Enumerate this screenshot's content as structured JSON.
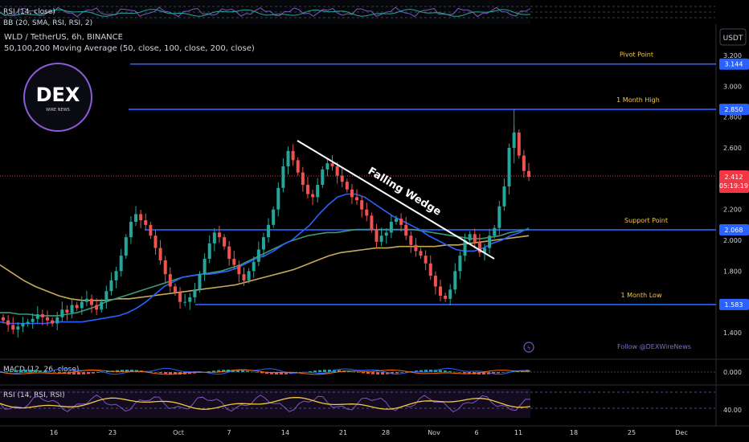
{
  "header": {
    "symbol_line": "WLD / TetherUS, 6h, BINANCE",
    "ma_line": "50,100,200 Moving Average (50, close, 100, close, 200, close)",
    "rsi_top_label": "RSI (14, close)",
    "bb_top_label": "BB (20, SMA, RSI, RSI, 2)",
    "currency_badge": "USDT"
  },
  "logo": {
    "text": "DEX",
    "subtext": "WIRE NEWS"
  },
  "watermark": {
    "follow_text": "Follow @DEXWireNews"
  },
  "price_tag": {
    "value": "2.412",
    "countdown": "05:19:19",
    "color": "#f23645"
  },
  "colors": {
    "up": "#26a69a",
    "down": "#ef5350",
    "level": "#2962ff",
    "label": "#f5c842",
    "ma50": "#2962ff",
    "ma100": "#3d9970",
    "ma200": "#c8a95a",
    "wedge": "#ffffff"
  },
  "chart_data": {
    "type": "candlestick",
    "x_ticks": [
      "16",
      "23",
      "Oct",
      "7",
      "14",
      "21",
      "28",
      "Nov",
      "6",
      "11",
      "18",
      "25",
      "Dec"
    ],
    "y_ticks": [
      "3.200",
      "3.000",
      "2.800",
      "2.600",
      "2.200",
      "2.000",
      "1.800",
      "1.400"
    ],
    "ylim": [
      1.3,
      3.25
    ],
    "levels": [
      {
        "name": "Pivot Point",
        "value": 3.144,
        "label": "3.144"
      },
      {
        "name": "1 Month High",
        "value": 2.85,
        "label": "2.850"
      },
      {
        "name": "Support Point",
        "value": 2.068,
        "label": "2.068"
      },
      {
        "name": "1 Month Low",
        "value": 1.583,
        "label": "1.583"
      }
    ],
    "annotation": "Falling Wedge",
    "close_series": [
      1.48,
      1.45,
      1.42,
      1.44,
      1.46,
      1.47,
      1.49,
      1.52,
      1.5,
      1.48,
      1.46,
      1.5,
      1.55,
      1.53,
      1.58,
      1.56,
      1.6,
      1.62,
      1.58,
      1.55,
      1.6,
      1.67,
      1.74,
      1.8,
      1.9,
      2.02,
      2.12,
      2.17,
      2.13,
      2.1,
      2.03,
      1.95,
      1.87,
      1.78,
      1.7,
      1.66,
      1.6,
      1.6,
      1.63,
      1.68,
      1.78,
      1.88,
      1.98,
      2.05,
      2.02,
      1.96,
      1.88,
      1.84,
      1.78,
      1.74,
      1.8,
      1.86,
      1.94,
      2.02,
      2.1,
      2.2,
      2.34,
      2.48,
      2.58,
      2.52,
      2.44,
      2.36,
      2.3,
      2.28,
      2.36,
      2.46,
      2.5,
      2.48,
      2.42,
      2.38,
      2.33,
      2.28,
      2.26,
      2.2,
      2.16,
      2.07,
      1.99,
      2.03,
      2.05,
      2.12,
      2.14,
      2.1,
      2.03,
      1.97,
      1.93,
      1.9,
      1.85,
      1.77,
      1.7,
      1.64,
      1.62,
      1.68,
      1.8,
      1.9,
      2.0,
      2.04,
      1.99,
      1.92,
      1.95,
      2.03,
      2.08,
      2.22,
      2.35,
      2.6,
      2.7,
      2.55,
      2.45,
      2.412
    ],
    "ma50_series": [
      1.47,
      1.46,
      1.46,
      1.46,
      1.46,
      1.46,
      1.47,
      1.47,
      1.47,
      1.47,
      1.48,
      1.49,
      1.5,
      1.51,
      1.53,
      1.56,
      1.6,
      1.65,
      1.7,
      1.73,
      1.76,
      1.77,
      1.78,
      1.78,
      1.79,
      1.8,
      1.82,
      1.85,
      1.88,
      1.9,
      1.93,
      1.97,
      2.0,
      2.05,
      2.1,
      2.17,
      2.23,
      2.28,
      2.3,
      2.3,
      2.28,
      2.24,
      2.2,
      2.16,
      2.13,
      2.1,
      2.07,
      2.03,
      2.0,
      1.97,
      1.94,
      1.93,
      1.93,
      1.95,
      1.98,
      2.0,
      2.03,
      2.05,
      2.08
    ],
    "ma100_series": [
      1.53,
      1.53,
      1.52,
      1.52,
      1.51,
      1.51,
      1.51,
      1.52,
      1.53,
      1.55,
      1.57,
      1.6,
      1.62,
      1.64,
      1.66,
      1.68,
      1.7,
      1.72,
      1.74,
      1.76,
      1.77,
      1.78,
      1.79,
      1.8,
      1.82,
      1.84,
      1.87,
      1.9,
      1.93,
      1.96,
      1.99,
      2.01,
      2.03,
      2.04,
      2.05,
      2.05,
      2.06,
      2.07,
      2.07,
      2.07,
      2.07,
      2.07,
      2.07,
      2.07,
      2.06,
      2.05,
      2.04,
      2.03,
      2.02,
      2.01,
      2.01,
      2.02,
      2.03,
      2.05,
      2.06,
      2.07
    ],
    "ma200_series": [
      1.84,
      1.79,
      1.74,
      1.7,
      1.67,
      1.64,
      1.62,
      1.61,
      1.61,
      1.61,
      1.62,
      1.62,
      1.63,
      1.64,
      1.65,
      1.66,
      1.67,
      1.68,
      1.69,
      1.7,
      1.71,
      1.73,
      1.75,
      1.77,
      1.79,
      1.81,
      1.84,
      1.87,
      1.9,
      1.92,
      1.93,
      1.94,
      1.95,
      1.95,
      1.96,
      1.96,
      1.96,
      1.96,
      1.97,
      1.97,
      1.98,
      1.99,
      2.0,
      2.01,
      2.02,
      2.03
    ]
  },
  "indicators": {
    "macd": {
      "label": "MACD (12, 26, close)",
      "tick": "0.000"
    },
    "rsi": {
      "label": "RSI (14, RSI, RSI)",
      "tick": "40.00"
    }
  }
}
